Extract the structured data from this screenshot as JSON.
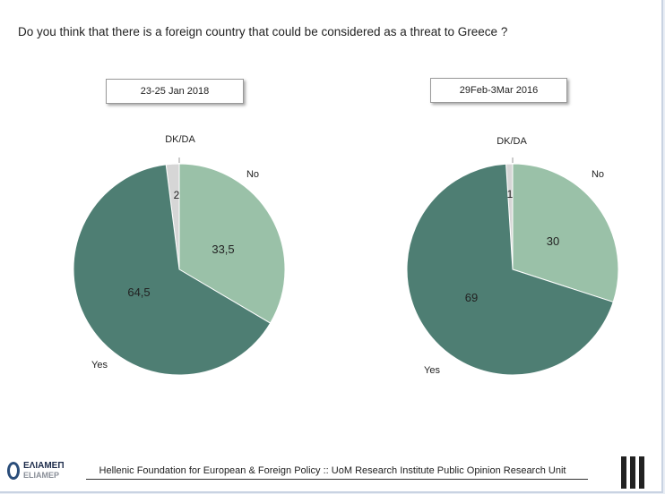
{
  "question": "Do you think that there is a foreign country that could be considered as a threat to Greece ?",
  "footer": "Hellenic Foundation for European & Foreign Policy :: UoM Research Institute Public Opinion Research Unit",
  "logo": {
    "line1": "ΕΛΙΑΜΕΠ",
    "line2": "ELIAMEP"
  },
  "colors": {
    "yes": "#4e7e73",
    "no": "#9ac1a8",
    "dk": "#d6d6d6"
  },
  "chart_data": [
    {
      "type": "pie",
      "title": "23-25 Jan 2018",
      "categories": [
        "DK/DA",
        "No",
        "Yes"
      ],
      "values": [
        2,
        33.5,
        64.5
      ],
      "value_labels": [
        "2",
        "33,5",
        "64,5"
      ]
    },
    {
      "type": "pie",
      "title": "29Feb-3Mar 2016",
      "categories": [
        "DK/DA",
        "No",
        "Yes"
      ],
      "values": [
        1,
        30,
        69
      ],
      "value_labels": [
        "1",
        "30",
        "69"
      ]
    }
  ]
}
